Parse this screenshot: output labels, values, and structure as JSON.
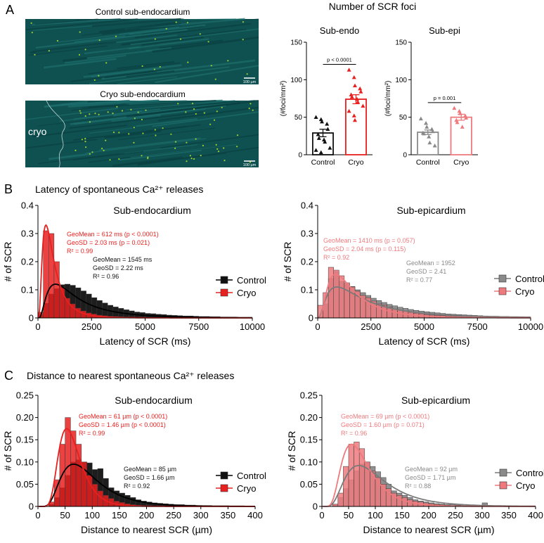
{
  "colors": {
    "control_black": "#111111",
    "control_gray": "#8a8a8a",
    "cryo_red": "#e8201f",
    "cryo_pink": "#ee7a7e",
    "micro_bg": "#0f5050",
    "foci": "#9ccf2f"
  },
  "panelA": {
    "letter": "A",
    "header": "Number of SCR foci",
    "image_control_title": "Control sub-endocardium",
    "image_cryo_title": "Cryo sub-endocardium",
    "cryo_region_label": "cryo",
    "scalebar_label": "100 µm"
  },
  "panelB": {
    "letter": "B",
    "header": "Latency of spontaneous Ca²⁺ releases"
  },
  "panelC": {
    "letter": "C",
    "header": "Distance to nearest spontaneous Ca²⁺ releases"
  },
  "chart_data": [
    {
      "id": "A-endo",
      "type": "bar",
      "title": "Sub-endo",
      "ylabel": "(#foci/mm²)",
      "categories": [
        "Control",
        "Cryo"
      ],
      "values": [
        29,
        74
      ],
      "sem": [
        5,
        6
      ],
      "ylim": [
        0,
        150
      ],
      "yticks": [
        0,
        50,
        100,
        150
      ],
      "p_value": "p < 0.0001",
      "points": [
        [
          50,
          47,
          44,
          41,
          34,
          27,
          22,
          20,
          17,
          9,
          6,
          3
        ],
        [
          113,
          103,
          92,
          88,
          84,
          80,
          77,
          74,
          70,
          65,
          58,
          52,
          46
        ]
      ],
      "colors": [
        "#111111",
        "#e8201f"
      ]
    },
    {
      "id": "A-epi",
      "type": "bar",
      "title": "Sub-epi",
      "ylabel": "(#foci/mm²)",
      "categories": [
        "Control",
        "Cryo"
      ],
      "values": [
        30,
        50
      ],
      "sem": [
        3,
        4
      ],
      "ylim": [
        0,
        150
      ],
      "yticks": [
        0,
        50,
        100,
        150
      ],
      "p_value": "p = 0.001",
      "points": [
        [
          48,
          42,
          37,
          34,
          31,
          29,
          28,
          24,
          16,
          12
        ],
        [
          62,
          58,
          55,
          52,
          49,
          46,
          43,
          37
        ]
      ],
      "colors": [
        "#8a8a8a",
        "#ee7a7e"
      ]
    },
    {
      "id": "B-endo",
      "type": "bar",
      "title": "Sub-endocardium",
      "xlabel": "Latency of SCR (ms)",
      "ylabel": "# of SCR",
      "xlim": [
        0,
        10000
      ],
      "ylim": [
        0,
        0.4
      ],
      "xticks": [
        0,
        2500,
        5000,
        7500,
        10000
      ],
      "yticks": [
        0,
        0.1,
        0.2,
        0.3,
        0.4
      ],
      "bin_width": 250,
      "series": [
        {
          "name": "Control",
          "color": "#111111",
          "values": [
            0.012,
            0.052,
            0.085,
            0.104,
            0.118,
            0.12,
            0.116,
            0.107,
            0.096,
            0.085,
            0.072,
            0.062,
            0.053,
            0.045,
            0.039,
            0.034,
            0.029,
            0.025,
            0.021,
            0.019,
            0.016,
            0.015,
            0.013,
            0.012,
            0.01,
            0.009,
            0.008,
            0.007,
            0.007,
            0.006,
            0.005,
            0.005,
            0.004,
            0.004,
            0.003,
            0.003,
            0.003,
            0.002,
            0.002,
            0.002
          ],
          "fit": {
            "gm": 1545,
            "gsd": 2.22,
            "peak": 0.12
          }
        },
        {
          "name": "Cryo",
          "color": "#e8201f",
          "values": [
            0.02,
            0.31,
            0.3,
            0.2,
            0.11,
            0.07,
            0.05,
            0.035,
            0.025,
            0.018,
            0.014,
            0.01,
            0.008,
            0.006,
            0.005,
            0.004,
            0.003,
            0.003,
            0.002,
            0.002,
            0.002,
            0.001,
            0.001,
            0.001,
            0.001,
            0.001,
            0,
            0,
            0,
            0,
            0,
            0,
            0,
            0,
            0,
            0,
            0,
            0,
            0,
            0
          ],
          "fit": {
            "gm": 612,
            "gsd": 2.03,
            "peak": 0.33
          }
        }
      ],
      "annotations": [
        {
          "color": "#e8201f",
          "lines": [
            "GeoMean = 612 ms (p < 0.0001)",
            "GeoSD = 2.03 ms (p = 0.021)",
            "R² = 0.99"
          ]
        },
        {
          "color": "#111111",
          "lines": [
            "GeoMean = 1545 ms",
            "GeoSD = 2.22 ms",
            "R² = 0.96"
          ]
        }
      ]
    },
    {
      "id": "B-epi",
      "type": "bar",
      "title": "Sub-epicardium",
      "xlabel": "Latency of SCR (ms)",
      "ylabel": "# of SCR",
      "xlim": [
        0,
        10000
      ],
      "ylim": [
        0,
        0.4
      ],
      "xticks": [
        0,
        2500,
        5000,
        7500,
        10000
      ],
      "yticks": [
        0,
        0.1,
        0.2,
        0.3,
        0.4
      ],
      "bin_width": 250,
      "series": [
        {
          "name": "Control",
          "color": "#8a8a8a",
          "values": [
            0.005,
            0.05,
            0.14,
            0.165,
            0.13,
            0.12,
            0.112,
            0.1,
            0.09,
            0.08,
            0.07,
            0.062,
            0.055,
            0.048,
            0.043,
            0.038,
            0.034,
            0.03,
            0.027,
            0.024,
            0.022,
            0.02,
            0.018,
            0.016,
            0.014,
            0.013,
            0.012,
            0.011,
            0.01,
            0.009,
            0.008,
            0.007,
            0.006,
            0.006,
            0.005,
            0.005,
            0.004,
            0.004,
            0.003,
            0.003
          ],
          "fit": {
            "gm": 1952,
            "gsd": 2.41,
            "peak": 0.11
          }
        },
        {
          "name": "Cryo",
          "color": "#ee7a7e",
          "values": [
            0.045,
            0.09,
            0.18,
            0.17,
            0.15,
            0.125,
            0.11,
            0.095,
            0.08,
            0.072,
            0.06,
            0.05,
            0.045,
            0.038,
            0.032,
            0.028,
            0.024,
            0.02,
            0.017,
            0.015,
            0.012,
            0.01,
            0.009,
            0.008,
            0.007,
            0.006,
            0.005,
            0.004,
            0.004,
            0.003,
            0.003,
            0.002,
            0.002,
            0.002,
            0.001,
            0.001,
            0.001,
            0.001,
            0.001,
            0.001
          ],
          "fit": {
            "gm": 1410,
            "gsd": 2.04,
            "peak": 0.155
          }
        }
      ],
      "annotations": [
        {
          "color": "#ee7a7e",
          "lines": [
            "GeoMean = 1410 ms (p = 0.057)",
            "GeoSD = 2.04 ms (p = 0.115)",
            "R² = 0.92"
          ]
        },
        {
          "color": "#8a8a8a",
          "lines": [
            "GeoMean = 1952",
            "GeoSD = 2.41",
            "R² = 0.77"
          ]
        }
      ]
    },
    {
      "id": "C-endo",
      "type": "bar",
      "title": "Sub-endocardium",
      "xlabel": "Distance to nearest SCR (µm)",
      "ylabel": "# of SCR",
      "xlim": [
        0,
        400
      ],
      "ylim": [
        0,
        0.25
      ],
      "xticks": [
        0,
        50,
        100,
        150,
        200,
        250,
        300,
        350,
        400
      ],
      "yticks": [
        0,
        0.05,
        0.1,
        0.15,
        0.2,
        0.25
      ],
      "bin_width": 10,
      "series": [
        {
          "name": "Control",
          "color": "#111111",
          "values": [
            0,
            0,
            0.005,
            0.02,
            0.042,
            0.07,
            0.1,
            0.105,
            0.1,
            0.098,
            0.083,
            0.085,
            0.063,
            0.042,
            0.035,
            0.03,
            0.025,
            0.02,
            0.015,
            0.012,
            0.01,
            0.008,
            0.007,
            0.006,
            0.005,
            0.004,
            0.004,
            0.003,
            0.003,
            0.002,
            0.002,
            0.002,
            0.001,
            0.001,
            0.001,
            0,
            0,
            0,
            0,
            0
          ],
          "fit": {
            "gm": 85,
            "gsd": 1.66,
            "peak": 0.095
          }
        },
        {
          "name": "Cryo",
          "color": "#e8201f",
          "values": [
            0,
            0,
            0.01,
            0.06,
            0.14,
            0.2,
            0.17,
            0.14,
            0.1,
            0.07,
            0.05,
            0.035,
            0.025,
            0.018,
            0.012,
            0.009,
            0.006,
            0.004,
            0.003,
            0.002,
            0.002,
            0.001,
            0.001,
            0,
            0,
            0,
            0,
            0,
            0,
            0,
            0,
            0,
            0,
            0,
            0,
            0,
            0,
            0,
            0,
            0
          ],
          "fit": {
            "gm": 61,
            "gsd": 1.46,
            "peak": 0.175
          }
        }
      ],
      "annotations": [
        {
          "color": "#e8201f",
          "lines": [
            "GeoMean = 61 µm (p < 0.0001)",
            "GeoSD = 1.46 µm (p < 0.0001)",
            "R² = 0.99"
          ]
        },
        {
          "color": "#111111",
          "lines": [
            "GeoMean = 85 µm",
            "GeoSD = 1.66 µm",
            "R² = 0.92"
          ]
        }
      ]
    },
    {
      "id": "C-epi",
      "type": "bar",
      "title": "Sub-epicardium",
      "xlabel": "Distance to nearest SCR (µm)",
      "ylabel": "# of SCR",
      "xlim": [
        0,
        400
      ],
      "ylim": [
        0,
        0.25
      ],
      "xticks": [
        0,
        50,
        100,
        150,
        200,
        250,
        300,
        350,
        400
      ],
      "yticks": [
        0,
        0.05,
        0.1,
        0.15,
        0.2,
        0.25
      ],
      "bin_width": 10,
      "series": [
        {
          "name": "Control",
          "color": "#8a8a8a",
          "values": [
            0,
            0,
            0.005,
            0.02,
            0.04,
            0.06,
            0.08,
            0.095,
            0.1,
            0.09,
            0.078,
            0.065,
            0.05,
            0.035,
            0.03,
            0.025,
            0.02,
            0.015,
            0.012,
            0.01,
            0.008,
            0.006,
            0.005,
            0.004,
            0.004,
            0.003,
            0.003,
            0.002,
            0.002,
            0.002,
            0.008,
            0.002,
            0.001,
            0.001,
            0.001,
            0,
            0,
            0,
            0,
            0
          ],
          "fit": {
            "gm": 92,
            "gsd": 1.71,
            "peak": 0.092
          }
        },
        {
          "name": "Cryo",
          "color": "#ee7a7e",
          "values": [
            0,
            0,
            0.005,
            0.03,
            0.09,
            0.14,
            0.145,
            0.13,
            0.1,
            0.08,
            0.065,
            0.05,
            0.04,
            0.03,
            0.025,
            0.02,
            0.015,
            0.012,
            0.01,
            0.008,
            0.006,
            0.005,
            0.004,
            0.003,
            0.002,
            0.002,
            0.001,
            0.001,
            0.001,
            0,
            0,
            0,
            0,
            0,
            0,
            0,
            0,
            0,
            0,
            0
          ],
          "fit": {
            "gm": 69,
            "gsd": 1.6,
            "peak": 0.14
          }
        }
      ],
      "annotations": [
        {
          "color": "#ee7a7e",
          "lines": [
            "GeoMean = 69 µm (p < 0.0001)",
            "GeoSD = 1.60 µm (p = 0.071)",
            "R² = 0.96"
          ]
        },
        {
          "color": "#8a8a8a",
          "lines": [
            "GeoMean = 92 µm",
            "GeoSD = 1.71 µm",
            "R² = 0.88"
          ]
        }
      ]
    }
  ]
}
